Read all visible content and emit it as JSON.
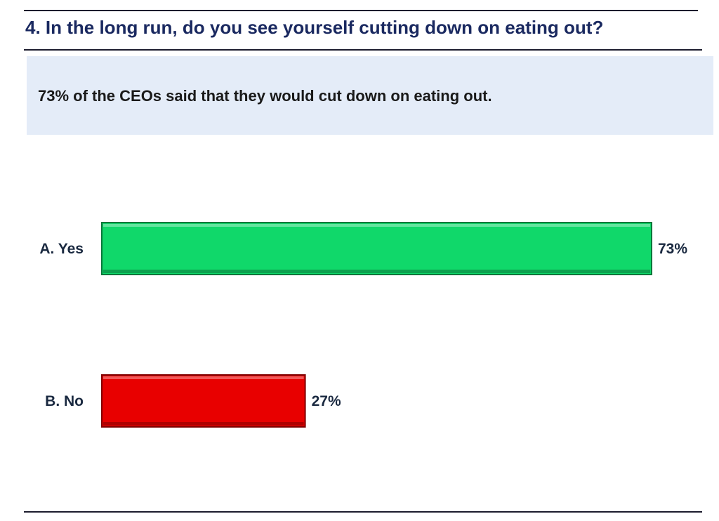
{
  "header": {
    "question": "4. In the long run, do you see yourself cutting down on eating out?"
  },
  "summary": {
    "text": "73% of the CEOs said that they would cut down on eating out."
  },
  "chart_data": {
    "type": "bar",
    "orientation": "horizontal",
    "categories": [
      "A. Yes",
      "B. No"
    ],
    "values": [
      73,
      27
    ],
    "value_labels": [
      "73%",
      "27%"
    ],
    "colors": [
      "#10d86a",
      "#e80000"
    ],
    "xlim": [
      0,
      73
    ],
    "grid": false,
    "legend": "none"
  }
}
